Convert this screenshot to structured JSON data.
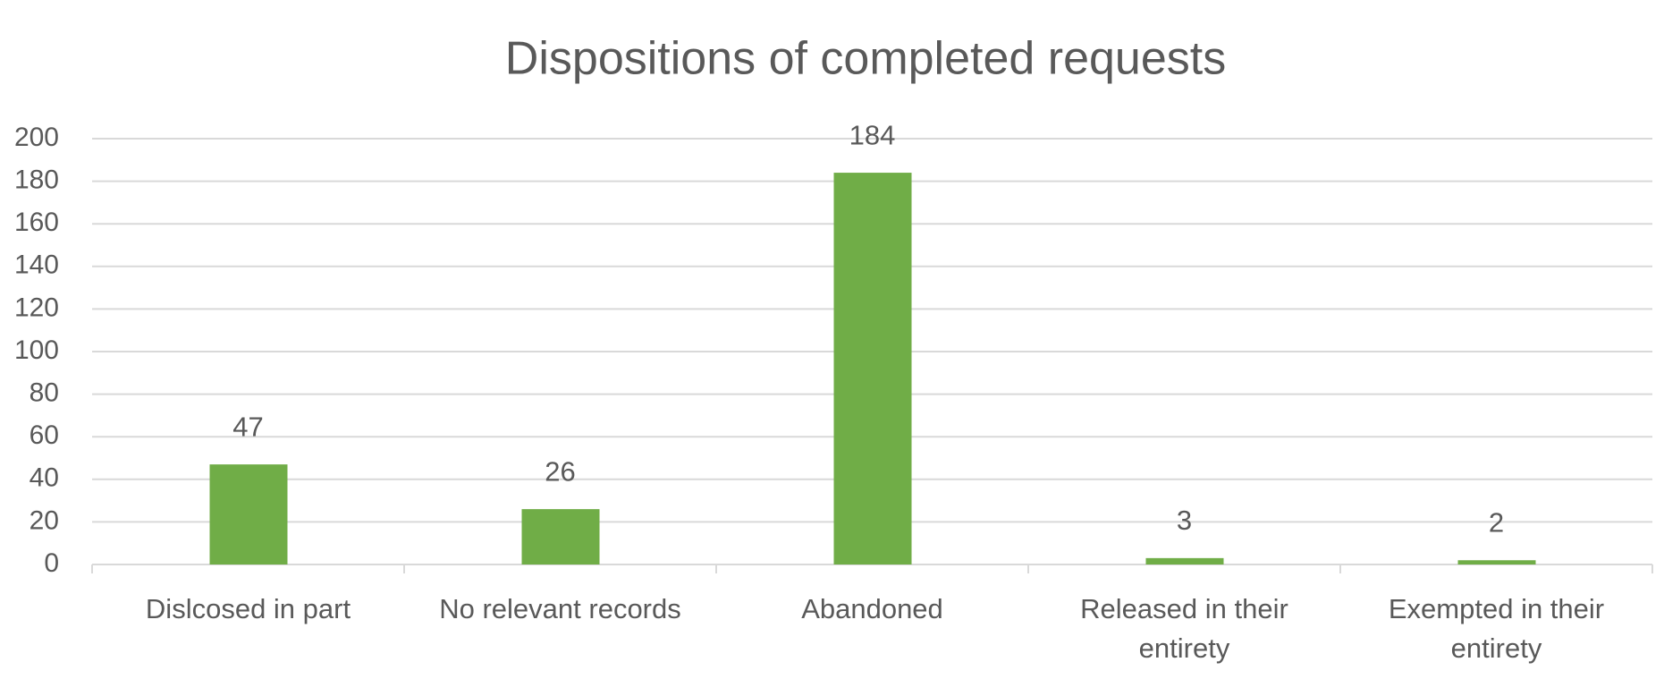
{
  "chart_data": {
    "type": "bar",
    "title": "Dispositions of completed requests",
    "categories": [
      "Dislcosed in part",
      "No relevant records",
      "Abandoned",
      "Released in their entirety",
      "Exempted in their entirety"
    ],
    "values": [
      47,
      26,
      184,
      3,
      2
    ],
    "color": "#70ad47",
    "ylim": [
      0,
      200
    ],
    "yticks": [
      0,
      20,
      40,
      60,
      80,
      100,
      120,
      140,
      160,
      180,
      200
    ],
    "grid": true
  }
}
